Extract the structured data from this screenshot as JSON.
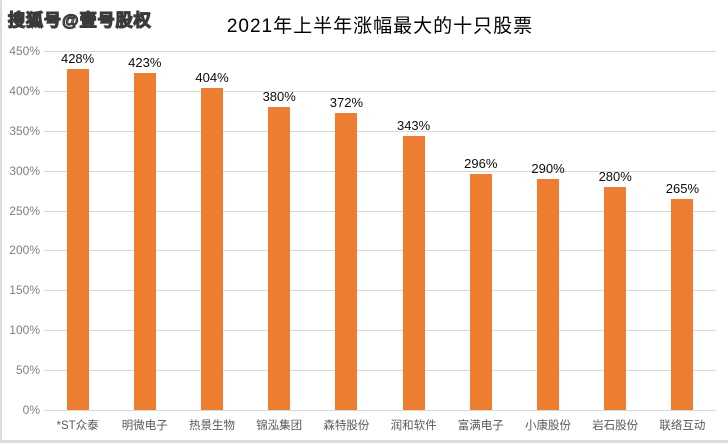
{
  "watermark": "搜狐号@壹号股权",
  "chart_data": {
    "type": "bar",
    "title": "2021年上半年涨幅最大的十只股票",
    "categories": [
      "*ST众泰",
      "明微电子",
      "热景生物",
      "锦泓集团",
      "森特股份",
      "润和软件",
      "富满电子",
      "小康股份",
      "岩石股份",
      "联络互动"
    ],
    "values": [
      428,
      423,
      404,
      380,
      372,
      343,
      296,
      290,
      280,
      265
    ],
    "value_labels": [
      "428%",
      "423%",
      "404%",
      "380%",
      "372%",
      "343%",
      "296%",
      "290%",
      "280%",
      "265%"
    ],
    "xlabel": "",
    "ylabel": "",
    "ylim": [
      0,
      450
    ],
    "ytick_step": 50,
    "ytick_labels": [
      "0%",
      "50%",
      "100%",
      "150%",
      "200%",
      "250%",
      "300%",
      "350%",
      "400%",
      "450%"
    ],
    "grid": true,
    "legend": "none",
    "colors": {
      "bar": "#ED7D31",
      "gridline": "#d9d9d9",
      "axis_text": "#7f7f7f",
      "category_text": "#595959",
      "value_text": "#0d0d0d",
      "title_text": "#000000",
      "background": "#ffffff"
    }
  }
}
